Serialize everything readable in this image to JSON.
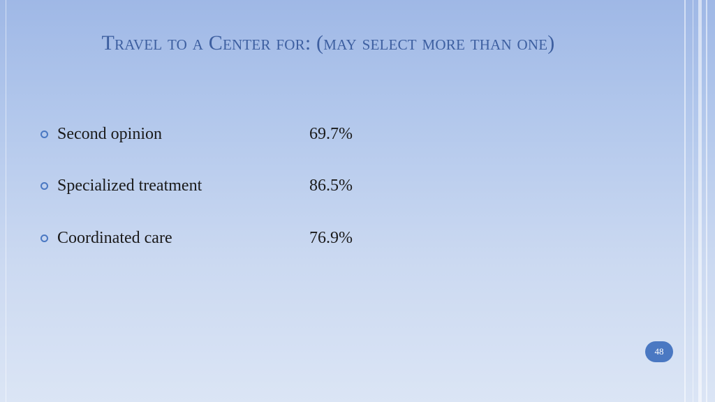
{
  "slide": {
    "title": "Travel to a Center for: (may select more than one)",
    "items": [
      {
        "label": "Second opinion",
        "value": "69.7%"
      },
      {
        "label": "Specialized treatment",
        "value": "86.5%"
      },
      {
        "label": "Coordinated care",
        "value": "76.9%"
      }
    ],
    "page_number": "48"
  },
  "colors": {
    "title": "#3d5fa0",
    "bullet": "#4a78c2",
    "page_badge": "#4a78c2",
    "background_top": "#9fb8e6",
    "background_bottom": "#dbe5f5"
  }
}
